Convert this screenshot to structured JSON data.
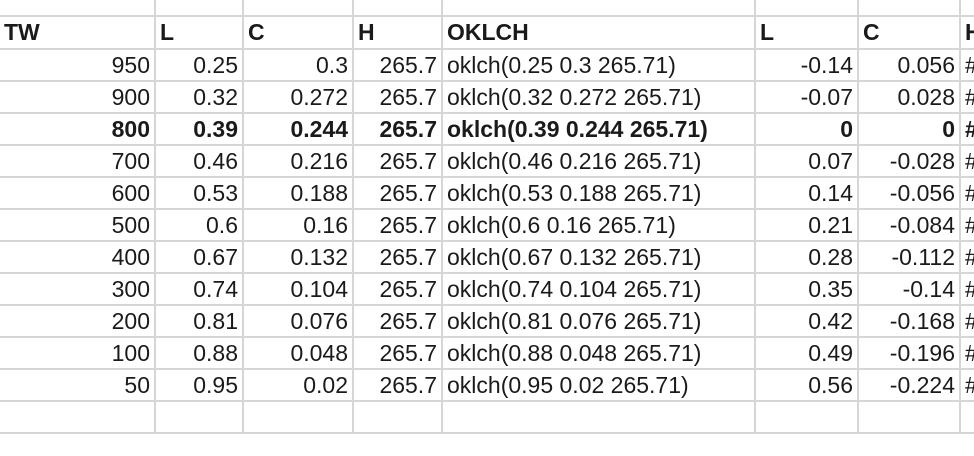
{
  "headers": [
    "TW",
    "L",
    "C",
    "H",
    "OKLCH",
    "L",
    "C",
    "H"
  ],
  "rows": [
    {
      "tw": "950",
      "l": "0.25",
      "c": "0.3",
      "h": "265.7",
      "oklch": "oklch(0.25 0.3 265.71)",
      "dl": "-0.14",
      "dc": "0.056",
      "hex": "#"
    },
    {
      "tw": "900",
      "l": "0.32",
      "c": "0.272",
      "h": "265.7",
      "oklch": "oklch(0.32 0.272 265.71)",
      "dl": "-0.07",
      "dc": "0.028",
      "hex": "#"
    },
    {
      "tw": "800",
      "l": "0.39",
      "c": "0.244",
      "h": "265.7",
      "oklch": "oklch(0.39 0.244 265.71)",
      "dl": "0",
      "dc": "0",
      "hex": "#",
      "bold": true
    },
    {
      "tw": "700",
      "l": "0.46",
      "c": "0.216",
      "h": "265.7",
      "oklch": "oklch(0.46 0.216 265.71)",
      "dl": "0.07",
      "dc": "-0.028",
      "hex": "#"
    },
    {
      "tw": "600",
      "l": "0.53",
      "c": "0.188",
      "h": "265.7",
      "oklch": "oklch(0.53 0.188 265.71)",
      "dl": "0.14",
      "dc": "-0.056",
      "hex": "#"
    },
    {
      "tw": "500",
      "l": "0.6",
      "c": "0.16",
      "h": "265.7",
      "oklch": "oklch(0.6 0.16 265.71)",
      "dl": "0.21",
      "dc": "-0.084",
      "hex": "#"
    },
    {
      "tw": "400",
      "l": "0.67",
      "c": "0.132",
      "h": "265.7",
      "oklch": "oklch(0.67 0.132 265.71)",
      "dl": "0.28",
      "dc": "-0.112",
      "hex": "#"
    },
    {
      "tw": "300",
      "l": "0.74",
      "c": "0.104",
      "h": "265.7",
      "oklch": "oklch(0.74 0.104 265.71)",
      "dl": "0.35",
      "dc": "-0.14",
      "hex": "#"
    },
    {
      "tw": "200",
      "l": "0.81",
      "c": "0.076",
      "h": "265.7",
      "oklch": "oklch(0.81 0.076 265.71)",
      "dl": "0.42",
      "dc": "-0.168",
      "hex": "#"
    },
    {
      "tw": "100",
      "l": "0.88",
      "c": "0.048",
      "h": "265.7",
      "oklch": "oklch(0.88 0.048 265.71)",
      "dl": "0.49",
      "dc": "-0.196",
      "hex": "#"
    },
    {
      "tw": "50",
      "l": "0.95",
      "c": "0.02",
      "h": "265.7",
      "oklch": "oklch(0.95 0.02 265.71)",
      "dl": "0.56",
      "dc": "-0.224",
      "hex": "#"
    }
  ],
  "colors": {
    "gridline": "#d6d6d6",
    "text": "#1a1a1a"
  }
}
